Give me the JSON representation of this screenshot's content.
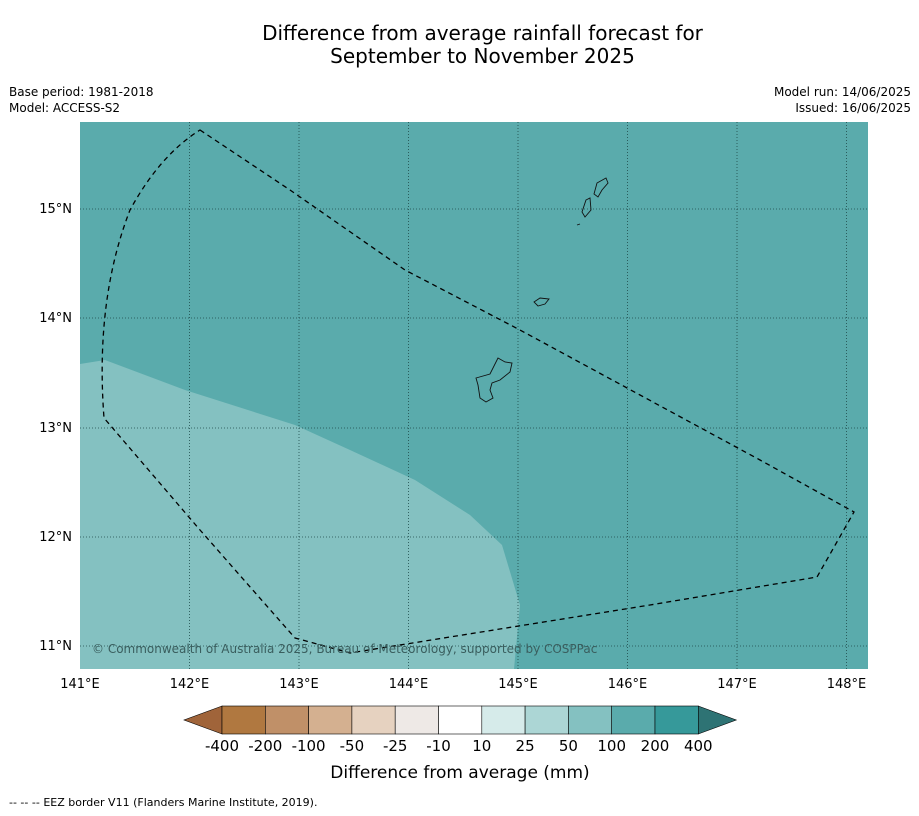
{
  "title": {
    "line1": "Difference from average rainfall forecast for",
    "line2": "September to November 2025"
  },
  "meta_left": {
    "base_period": "Base period: 1981-2018",
    "model": "Model: ACCESS-S2"
  },
  "meta_right": {
    "model_run": "Model run: 14/06/2025",
    "issued": "Issued: 16/06/2025"
  },
  "map": {
    "longitude_labels": [
      "141°E",
      "142°E",
      "143°E",
      "144°E",
      "145°E",
      "146°E",
      "147°E",
      "148°E"
    ],
    "latitude_labels": [
      "15°N",
      "14°N",
      "13°N",
      "12°N",
      "11°N"
    ],
    "copyright": "© Commonwealth of Australia 2025, Bureau of Meteorology, supported by COSPPac",
    "region_colors": {
      "200_to_400": "#5aabac",
      "100_to_200": "#84c1c1"
    }
  },
  "colorbar": {
    "label": "Difference from average (mm)",
    "ticks": [
      "-400",
      "-200",
      "-100",
      "-50",
      "-25",
      "-10",
      "10",
      "25",
      "50",
      "100",
      "200",
      "400"
    ],
    "colors": [
      "#a0643a",
      "#b07840",
      "#c09068",
      "#d4b090",
      "#e6d2c0",
      "#eee9e6",
      "#ffffff",
      "#d6ebea",
      "#acd6d5",
      "#84c1c1",
      "#5aabac",
      "#36999a",
      "#2e7374"
    ]
  },
  "footnote": {
    "marker": "-- -- --",
    "text": "EEZ border V11 (Flanders Marine Institute, 2019)."
  }
}
